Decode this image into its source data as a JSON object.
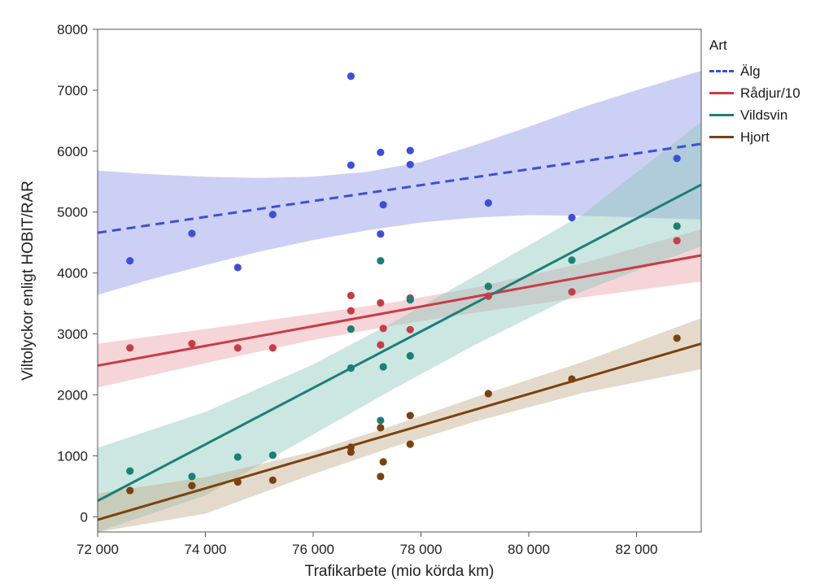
{
  "chart_data": {
    "type": "scatter",
    "xlabel": "Trafikarbete (mio körda km)",
    "ylabel": "Viltolyckor enligt HOBIT/RAR",
    "xlim": [
      72000,
      83200
    ],
    "ylim": [
      -250,
      8000
    ],
    "x_ticks": [
      72000,
      74000,
      76000,
      78000,
      80000,
      82000
    ],
    "x_tick_labels": [
      "72 000",
      "74 000",
      "76 000",
      "78 000",
      "80 000",
      "82 000"
    ],
    "y_ticks": [
      0,
      1000,
      2000,
      3000,
      4000,
      5000,
      6000,
      7000,
      8000
    ],
    "y_tick_labels": [
      "0",
      "1000",
      "2000",
      "3000",
      "4000",
      "5000",
      "6000",
      "7000",
      "8000"
    ],
    "legend_title": "Art",
    "legend_position": "right",
    "grid": false,
    "series": [
      {
        "name": "Älg",
        "color": "#3b4fd8",
        "band_color": "#8e96e6",
        "line_style": "dashed",
        "points": [
          [
            72600,
            4200
          ],
          [
            73750,
            4650
          ],
          [
            74600,
            4090
          ],
          [
            75250,
            4960
          ],
          [
            76700,
            7230
          ],
          [
            76700,
            5770
          ],
          [
            77250,
            5980
          ],
          [
            77250,
            4640
          ],
          [
            77300,
            5120
          ],
          [
            77800,
            6010
          ],
          [
            77800,
            5780
          ],
          [
            79250,
            5150
          ],
          [
            80800,
            4910
          ],
          [
            82750,
            5880
          ]
        ],
        "fit": [
          [
            72000,
            4660
          ],
          [
            83200,
            6120
          ]
        ],
        "band_upper": [
          [
            72000,
            5680
          ],
          [
            73000,
            5620
          ],
          [
            74000,
            5580
          ],
          [
            75000,
            5560
          ],
          [
            76000,
            5580
          ],
          [
            77000,
            5660
          ],
          [
            78000,
            5820
          ],
          [
            79000,
            6100
          ],
          [
            80000,
            6400
          ],
          [
            81000,
            6720
          ],
          [
            82000,
            7000
          ],
          [
            83200,
            7320
          ]
        ],
        "band_lower": [
          [
            72000,
            3640
          ],
          [
            73000,
            3900
          ],
          [
            74000,
            4130
          ],
          [
            75000,
            4350
          ],
          [
            76000,
            4540
          ],
          [
            77000,
            4700
          ],
          [
            78000,
            4830
          ],
          [
            79000,
            4910
          ],
          [
            80000,
            4950
          ],
          [
            81000,
            4940
          ],
          [
            82000,
            4910
          ],
          [
            83200,
            4880
          ]
        ]
      },
      {
        "name": "Rådjur/10",
        "color": "#c83c46",
        "band_color": "#e8a2a8",
        "line_style": "solid",
        "points": [
          [
            72600,
            2770
          ],
          [
            73750,
            2840
          ],
          [
            74600,
            2770
          ],
          [
            75250,
            2770
          ],
          [
            76700,
            3630
          ],
          [
            76700,
            3380
          ],
          [
            77250,
            3510
          ],
          [
            77250,
            2820
          ],
          [
            77300,
            3090
          ],
          [
            77800,
            3590
          ],
          [
            77800,
            3070
          ],
          [
            79250,
            3620
          ],
          [
            80800,
            3690
          ],
          [
            82750,
            4530
          ]
        ],
        "fit": [
          [
            72000,
            2480
          ],
          [
            83200,
            4290
          ]
        ],
        "band_upper": [
          [
            72000,
            2840
          ],
          [
            74000,
            3080
          ],
          [
            76000,
            3330
          ],
          [
            77500,
            3520
          ],
          [
            79000,
            3760
          ],
          [
            81000,
            4160
          ],
          [
            83200,
            4720
          ]
        ],
        "band_lower": [
          [
            72000,
            2120
          ],
          [
            74000,
            2520
          ],
          [
            76000,
            2900
          ],
          [
            77500,
            3140
          ],
          [
            79000,
            3350
          ],
          [
            81000,
            3600
          ],
          [
            83200,
            3860
          ]
        ]
      },
      {
        "name": "Vildsvin",
        "color": "#1a8076",
        "band_color": "#8fc8bd",
        "line_style": "solid",
        "points": [
          [
            72600,
            750
          ],
          [
            73750,
            660
          ],
          [
            74600,
            980
          ],
          [
            75250,
            1010
          ],
          [
            76700,
            3080
          ],
          [
            76700,
            2440
          ],
          [
            77250,
            4200
          ],
          [
            77250,
            1580
          ],
          [
            77300,
            2460
          ],
          [
            77800,
            3560
          ],
          [
            77800,
            2640
          ],
          [
            79250,
            3780
          ],
          [
            80800,
            4210
          ],
          [
            82750,
            4770
          ]
        ],
        "fit": [
          [
            72000,
            260
          ],
          [
            83200,
            5450
          ]
        ],
        "band_upper": [
          [
            72000,
            1130
          ],
          [
            74000,
            1720
          ],
          [
            76000,
            2500
          ],
          [
            77500,
            3200
          ],
          [
            79000,
            3950
          ],
          [
            81000,
            4960
          ],
          [
            83200,
            6480
          ]
        ],
        "band_lower": [
          [
            72000,
            -250
          ],
          [
            74000,
            350
          ],
          [
            76000,
            1350
          ],
          [
            77500,
            2100
          ],
          [
            79000,
            2820
          ],
          [
            81000,
            3700
          ],
          [
            83200,
            4440
          ]
        ]
      },
      {
        "name": "Hjort",
        "color": "#7a4210",
        "band_color": "#c4ae8c",
        "line_style": "solid",
        "points": [
          [
            72600,
            430
          ],
          [
            73750,
            510
          ],
          [
            74600,
            570
          ],
          [
            75250,
            600
          ],
          [
            76700,
            1140
          ],
          [
            76700,
            1060
          ],
          [
            77250,
            1460
          ],
          [
            77250,
            660
          ],
          [
            77300,
            900
          ],
          [
            77800,
            1660
          ],
          [
            77800,
            1190
          ],
          [
            79250,
            2020
          ],
          [
            80800,
            2260
          ],
          [
            82750,
            2930
          ]
        ],
        "fit": [
          [
            72000,
            -50
          ],
          [
            83200,
            2840
          ]
        ],
        "band_upper": [
          [
            72000,
            380
          ],
          [
            74000,
            650
          ],
          [
            76000,
            1070
          ],
          [
            77500,
            1500
          ],
          [
            79000,
            1960
          ],
          [
            81000,
            2540
          ],
          [
            83200,
            3260
          ]
        ],
        "band_lower": [
          [
            72000,
            -250
          ],
          [
            74000,
            50
          ],
          [
            76000,
            700
          ],
          [
            77500,
            1150
          ],
          [
            79000,
            1560
          ],
          [
            81000,
            2030
          ],
          [
            83200,
            2420
          ]
        ]
      }
    ]
  }
}
